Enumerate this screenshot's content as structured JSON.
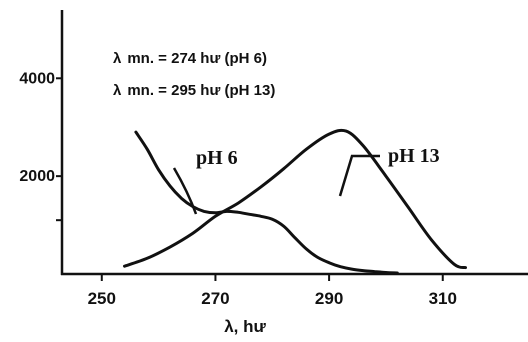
{
  "chart_data": {
    "type": "line",
    "title": "",
    "xlabel": "λ, hư",
    "ylabel": "",
    "xlim": [
      243,
      325
    ],
    "ylim": [
      0,
      5600
    ],
    "x_ticks": [
      {
        "value": 250,
        "label": "250"
      },
      {
        "value": 270,
        "label": "270"
      },
      {
        "value": 290,
        "label": "290"
      },
      {
        "value": 310,
        "label": "310"
      }
    ],
    "y_ticks": [
      {
        "value": 1100,
        "label": ""
      },
      {
        "value": 2000,
        "label": "2000"
      },
      {
        "value": 4000,
        "label": "4000"
      }
    ],
    "annotations": [
      "λ  mn. = 274 hư (pH 6)",
      "λ  mn. = 295 hư (pH 13)"
    ],
    "series": [
      {
        "name": "pH 6",
        "x": [
          256,
          258,
          260,
          262,
          264,
          266,
          268,
          270,
          272,
          274,
          276,
          278,
          280,
          282,
          284,
          286,
          288,
          290,
          292,
          294,
          296,
          298,
          300,
          302
        ],
        "y": [
          2900,
          2550,
          2130,
          1800,
          1550,
          1380,
          1280,
          1250,
          1280,
          1260,
          1220,
          1180,
          1120,
          980,
          740,
          510,
          340,
          230,
          150,
          100,
          70,
          50,
          30,
          20
        ]
      },
      {
        "name": "pH 13",
        "x": [
          254,
          258,
          262,
          266,
          270,
          274,
          278,
          282,
          286,
          290,
          293,
          296,
          300,
          304,
          308,
          312,
          314
        ],
        "y": [
          160,
          320,
          550,
          830,
          1180,
          1450,
          1780,
          2150,
          2550,
          2860,
          2920,
          2620,
          2000,
          1350,
          700,
          200,
          130
        ]
      }
    ],
    "series_labels": [
      "pH 6",
      "pH 13"
    ],
    "grid": false,
    "legend": "none"
  }
}
